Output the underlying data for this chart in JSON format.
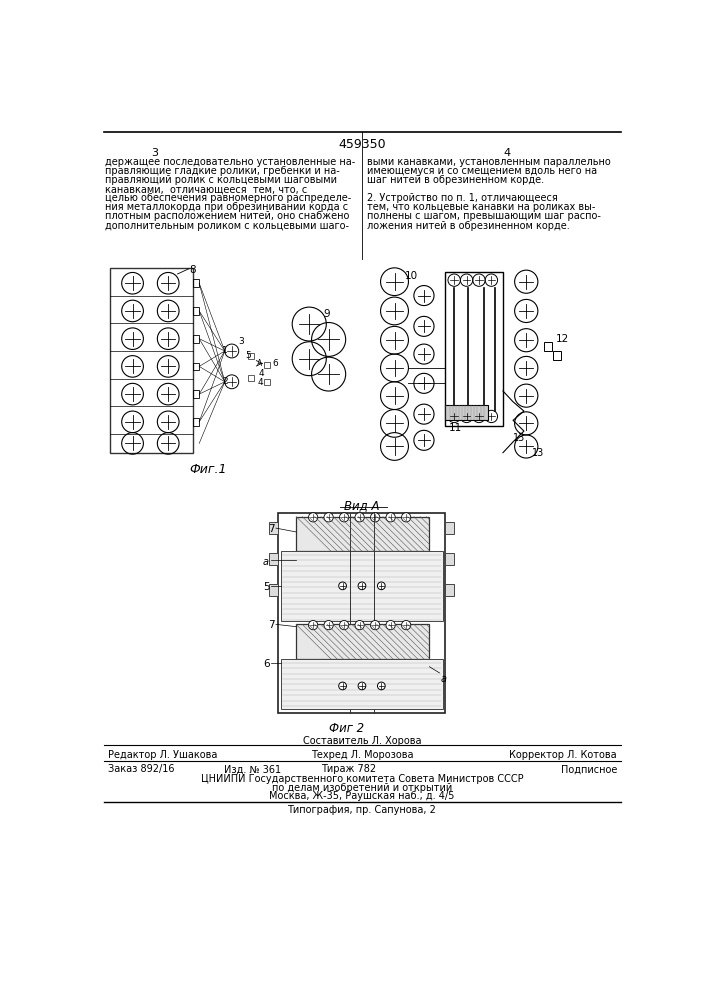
{
  "patent_number": "459350",
  "page_numbers": [
    "3",
    "4"
  ],
  "background_color": "#ffffff",
  "text_color": "#000000",
  "col1_lines": [
    "держащее последовательно установленные на-",
    "правляющие гладкие ролики, гребенки и на-",
    "правляющий ролик с кольцевыми шаговыми",
    "канавками,  отличающееся  тем, что, с",
    "целью обеспечения равномерного распределе-",
    "ния металлокорда при обрезинивании корда с",
    "плотным расположением нитей, оно снабжено",
    "дополнительным роликом с кольцевыми шаго-"
  ],
  "col2_lines": [
    "выми канавками, установленным параллельно",
    "имеющемуся и со смещением вдоль него на",
    "шаг нитей в обрезиненном корде.",
    "",
    "2. Устройство по п. 1, отличающееся",
    "тем, что кольцевые канавки на роликах вы-",
    "полнены с шагом, превышающим шаг распо-",
    "ложения нитей в обрезиненном корде."
  ],
  "fig1_label": "Фиг.1",
  "fig2_label": "Фиг 2",
  "view_label": "Вид А",
  "footer_editor": "Редактор Л. Ушакова",
  "footer_techred": "Техред Л. Морозова",
  "footer_corrector": "Корректор Л. Котова",
  "footer_order": "Заказ 892/16",
  "footer_izdanie": "Изд. № 361",
  "footer_tirazh": "Тираж 782",
  "footer_podpisnoe": "Подписное",
  "footer_cniip1": "ЦНИИПИ Государственного комитета Совета Министров СССР",
  "footer_cniip2": "по делам изобретений и открытий",
  "footer_cniip3": "Москва, Ж-35, Раушская наб., д. 4/5",
  "footer_tipogr": "Типография, пр. Сапунова, 2",
  "sostavitel": "Составитель Л. Хорова"
}
